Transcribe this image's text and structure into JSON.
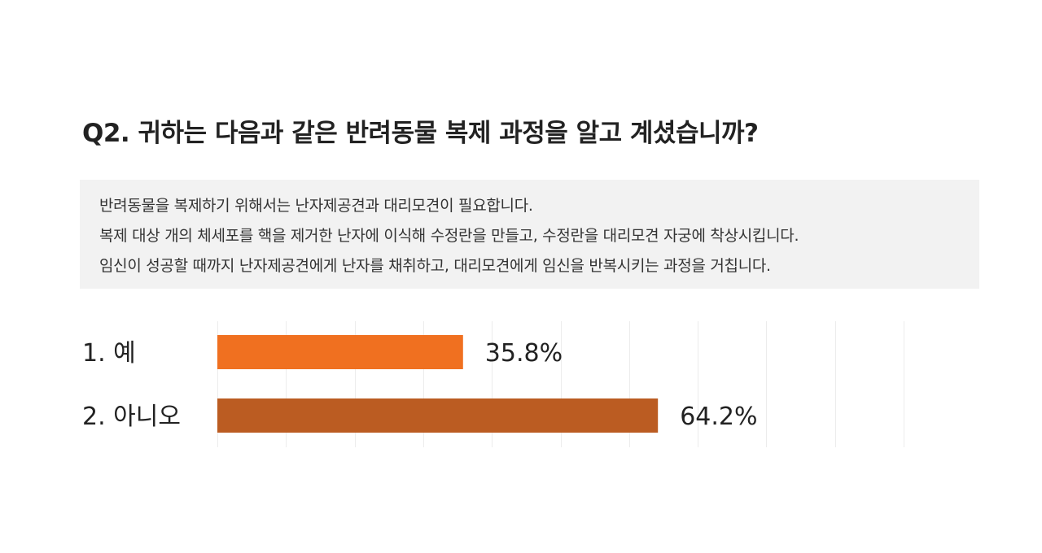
{
  "question": "Q2. 귀하는 다음과 같은 반려동물 복제 과정을 알고 계셨습니까?",
  "description": [
    "반려동물을 복제하기 위해서는 난자제공견과 대리모견이 필요합니다.",
    "복제 대상 개의 체세포를 핵을 제거한 난자에 이식해 수정란을 만들고, 수정란을 대리모견 자궁에 착상시킵니다.",
    "임신이 성공할 때까지 난자제공견에게 난자를 채취하고, 대리모견에게 임신을 반복시키는 과정을 거칩니다."
  ],
  "chart_data": {
    "type": "bar",
    "orientation": "horizontal",
    "categories": [
      "1. 예",
      "2. 아니오"
    ],
    "values": [
      35.8,
      64.2
    ],
    "value_labels": [
      "35.8%",
      "64.2%"
    ],
    "colors": [
      "#f07020",
      "#bb5c22"
    ],
    "xlim": [
      0,
      100
    ],
    "grid": true,
    "title": "",
    "xlabel": "",
    "ylabel": ""
  }
}
